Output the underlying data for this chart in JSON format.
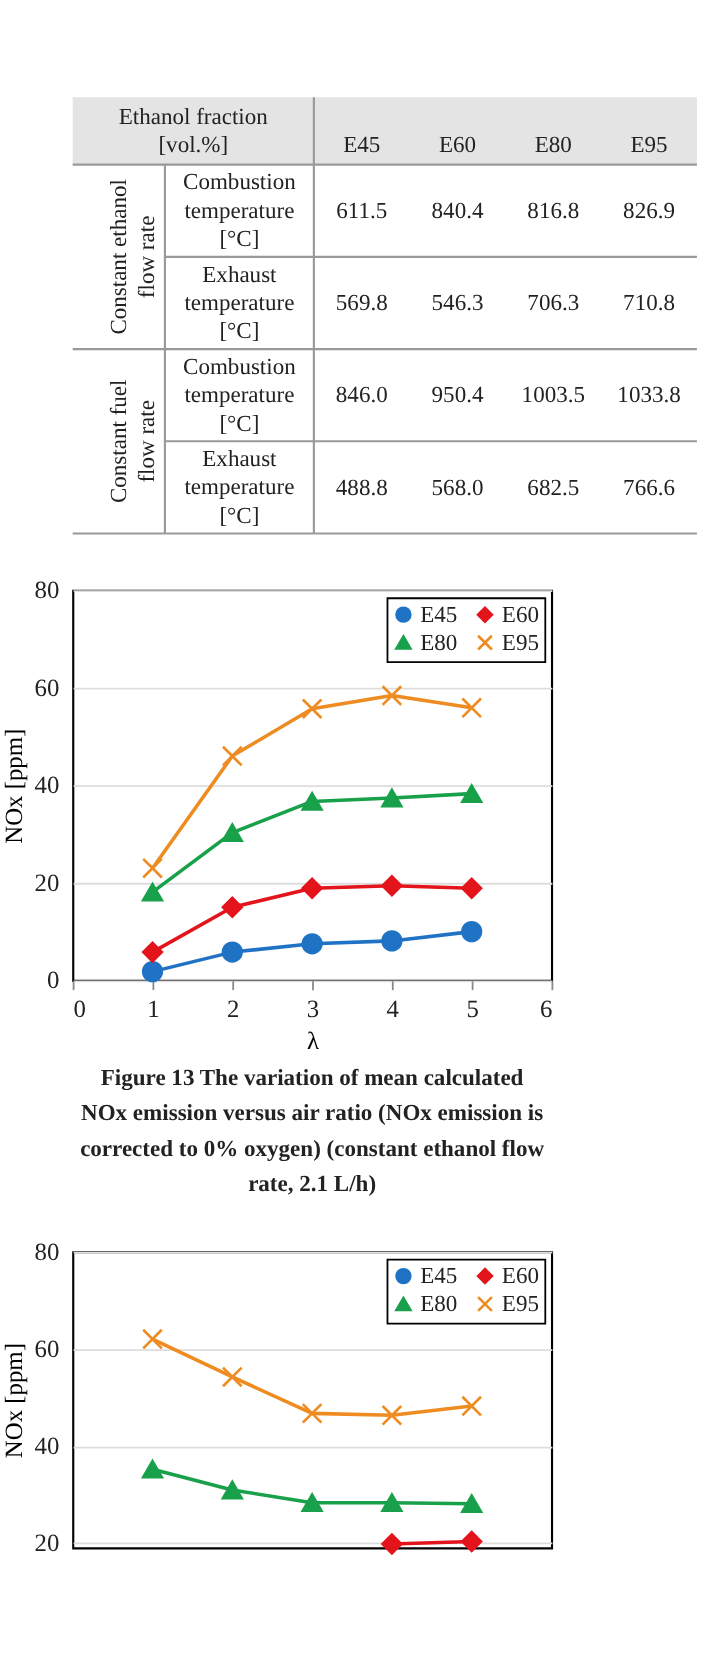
{
  "chart_data": [
    {
      "type": "other",
      "categories": [
        "Ethanol fraction [vol.%]",
        "E45",
        "E60",
        "E80",
        "E95"
      ],
      "y_categories": [
        "Combustion temperature [°C]",
        "Exhaust temperature [°C]",
        "Combustion temperature [°C]",
        "Exhaust temperature [°C]"
      ],
      "annotations": [
        "Constant ethanol flow rate",
        "Constant fuel flow rate"
      ],
      "cell_labels": [
        [
          "611.5",
          "840.4",
          "816.8",
          "826.9"
        ],
        [
          "569.8",
          "546.3",
          "706.3",
          "710.8"
        ],
        [
          "846.0",
          "950.4",
          "1003.5",
          "1033.8"
        ],
        [
          "488.8",
          "568.0",
          "682.5",
          "766.6"
        ]
      ]
    },
    {
      "type": "line",
      "x": [
        1,
        2,
        3,
        4,
        5
      ],
      "xlim": [
        0,
        6
      ],
      "xticks": [
        0,
        1,
        2,
        3,
        4,
        5,
        6
      ],
      "ylim": [
        0,
        80
      ],
      "yticks": [
        0,
        20,
        40,
        60,
        80
      ],
      "xlabel": "λ",
      "ylabel": "NOx  [ppm]",
      "grid": "y",
      "legend": "top right",
      "annotations": [
        "Figure 13    The variation of mean calculated NOx emission versus air ratio (NOx emission is corrected to 0% oxygen) (constant ethanol flow rate, 2.1 L/h)"
      ],
      "series": [
        {
          "name": "E45",
          "color": "#1f72c4",
          "marker": "circle",
          "values": [
            1.8,
            5.8,
            7.5,
            8.1,
            10.0
          ]
        },
        {
          "name": "E60",
          "color": "#e3141b",
          "marker": "diamond",
          "values": [
            5.8,
            15.0,
            18.9,
            19.4,
            18.9
          ]
        },
        {
          "name": "E80",
          "color": "#18a04a",
          "marker": "triangle",
          "values": [
            18.1,
            30.3,
            36.7,
            37.4,
            38.3
          ]
        },
        {
          "name": "E95",
          "color": "#ee8c22",
          "marker": "cross",
          "values": [
            23.0,
            46.0,
            55.7,
            58.4,
            55.9
          ]
        }
      ]
    },
    {
      "type": "line",
      "x": [
        1,
        2,
        3,
        4,
        5
      ],
      "xlim": [
        0,
        6
      ],
      "ylim": [
        19,
        80
      ],
      "yticks": [
        20,
        40,
        60,
        80
      ],
      "ylabel": "NOx [ppm]",
      "grid": "y",
      "legend": "top right",
      "tick_labels": "y",
      "series": [
        {
          "name": "E45",
          "color": "#1f72c4",
          "marker": "circle",
          "values": [
            null,
            null,
            null,
            null,
            null
          ]
        },
        {
          "name": "E60",
          "color": "#e3141b",
          "marker": "diamond",
          "values": [
            null,
            null,
            null,
            19.8,
            20.3
          ]
        },
        {
          "name": "E80",
          "color": "#18a04a",
          "marker": "triangle",
          "values": [
            35.2,
            30.9,
            28.3,
            28.3,
            28.1
          ]
        },
        {
          "name": "E95",
          "color": "#ee8c22",
          "marker": "cross",
          "values": [
            62.0,
            54.2,
            46.7,
            46.3,
            48.2
          ]
        }
      ]
    }
  ]
}
